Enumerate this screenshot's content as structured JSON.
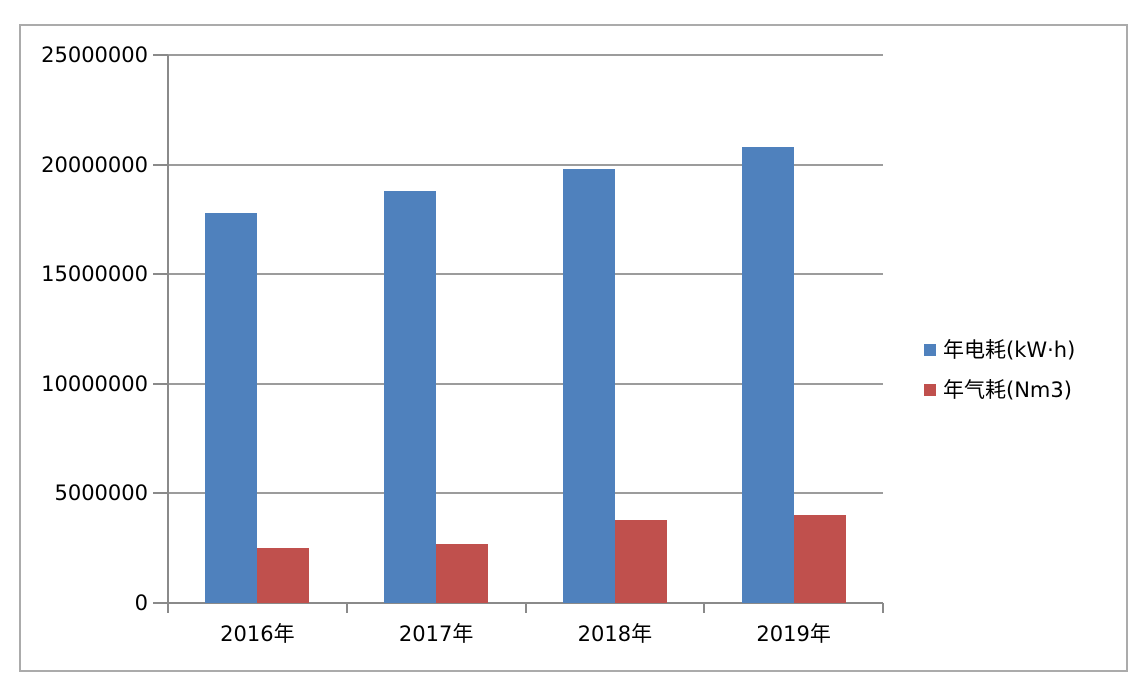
{
  "chart_data": {
    "type": "bar",
    "title": "",
    "xlabel": "",
    "ylabel": "",
    "categories": [
      "2016年",
      "2017年",
      "2018年",
      "2019年"
    ],
    "series": [
      {
        "name": "年电耗(kW·h)",
        "color": "#4F81BD",
        "values": [
          17800000,
          18800000,
          19800000,
          20800000
        ]
      },
      {
        "name": "年气耗(Nm3)",
        "color": "#C0504D",
        "values": [
          2500000,
          2700000,
          3800000,
          4000000
        ]
      }
    ],
    "ylim": [
      0,
      25000000
    ],
    "ytick_interval": 5000000,
    "ytick_labels": [
      "0",
      "5000000",
      "10000000",
      "15000000",
      "20000000",
      "25000000"
    ],
    "grid": true,
    "legend_position": "right"
  },
  "colors": {
    "series1": "#4F81BD",
    "series2": "#C0504D",
    "gridline": "#9c9c9c",
    "axis": "#8a8a8a",
    "border": "#ababab",
    "text": "#000000"
  }
}
